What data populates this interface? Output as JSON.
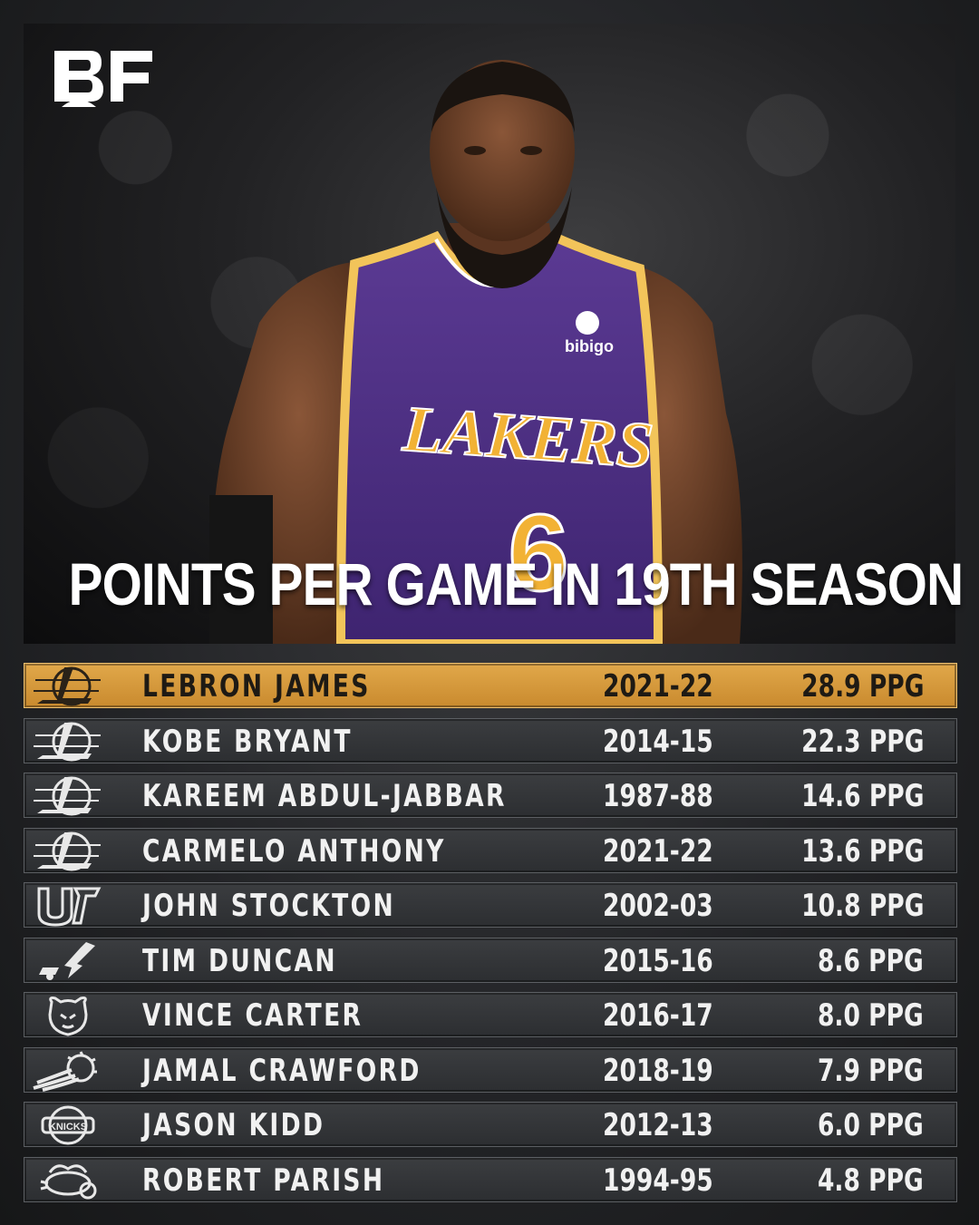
{
  "brand": {
    "logo_text": "BF"
  },
  "headline": "POINTS PER GAME IN 19TH SEASON",
  "colors": {
    "highlight": "#d99a3c",
    "row_bg": "#33353a",
    "text": "#f1f1f1"
  },
  "rows": [
    {
      "team_icon": "lakers-logo-icon",
      "name": "LEBRON JAMES",
      "season": "2021-22",
      "ppg": "28.9 PPG",
      "highlight": true
    },
    {
      "team_icon": "lakers-logo-icon",
      "name": "KOBE BRYANT",
      "season": "2014-15",
      "ppg": "22.3 PPG"
    },
    {
      "team_icon": "lakers-logo-icon",
      "name": "KAREEM ABDUL-JABBAR",
      "season": "1987-88",
      "ppg": "14.6 PPG"
    },
    {
      "team_icon": "lakers-logo-icon",
      "name": "CARMELO ANTHONY",
      "season": "2021-22",
      "ppg": "13.6 PPG"
    },
    {
      "team_icon": "jazz-logo-icon",
      "name": "JOHN STOCKTON",
      "season": "2002-03",
      "ppg": "10.8 PPG"
    },
    {
      "team_icon": "spurs-logo-icon",
      "name": "TIM DUNCAN",
      "season": "2015-16",
      "ppg": "8.6 PPG"
    },
    {
      "team_icon": "grizzlies-logo-icon",
      "name": "VINCE CARTER",
      "season": "2016-17",
      "ppg": "8.0 PPG"
    },
    {
      "team_icon": "suns-logo-icon",
      "name": "JAMAL CRAWFORD",
      "season": "2018-19",
      "ppg": "7.9 PPG"
    },
    {
      "team_icon": "knicks-logo-icon",
      "name": "JASON KIDD",
      "season": "2012-13",
      "ppg": "6.0 PPG"
    },
    {
      "team_icon": "hornets-logo-icon",
      "name": "ROBERT PARISH",
      "season": "1994-95",
      "ppg": "4.8 PPG"
    }
  ]
}
